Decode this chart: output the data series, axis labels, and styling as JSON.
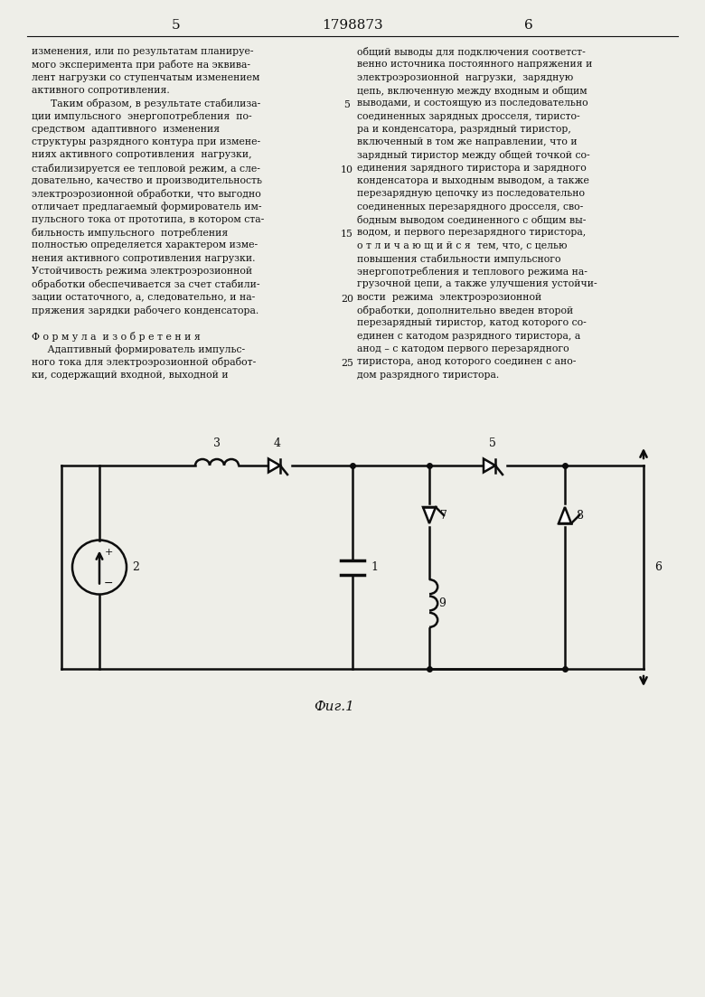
{
  "page_color": "#eeeee8",
  "text_color": "#111111",
  "page_num_left": "5",
  "page_num_center": "1798873",
  "page_num_right": "6",
  "left_col": [
    "изменения, или по результатам планируе-",
    "мого эксперимента при работе на эквива-",
    "лент нагрузки со ступенчатым изменением",
    "активного сопротивления.",
    "      Таким образом, в результате стабилиза-",
    "ции импульсного  энергопотребления  по-",
    "средством  адаптивного  изменения",
    "структуры разрядного контура при измене-",
    "ниях активного сопротивления  нагрузки,",
    "стабилизируется ее тепловой режим, а сле-",
    "довательно, качество и производительность",
    "электроэрозионной обработки, что выгодно",
    "отличает предлагаемый формирователь им-",
    "пульсного тока от прототипа, в котором ста-",
    "бильность импульсного  потребления",
    "полностью определяется характером изме-",
    "нения активного сопротивления нагрузки.",
    "Устойчивость режима электроэрозионной",
    "обработки обеспечивается за счет стабили-",
    "зации остаточного, а, следовательно, и на-",
    "пряжения зарядки рабочего конденсатора.",
    "",
    "Ф о р м у л а  и з о б р е т е н и я",
    "     Адаптивный формирователь импульс-",
    "ного тока для электроэрозионной обработ-",
    "ки, содержащий входной, выходной и"
  ],
  "right_col": [
    "общий выводы для подключения соответст-",
    "венно источника постоянного напряжения и",
    "электроэрозионной  нагрузки,  зарядную",
    "цепь, включенную между входным и общим",
    "выводами, и состоящую из последовательно",
    "соединенных зарядных дросселя, тиристо-",
    "ра и конденсатора, разрядный тиристор,",
    "включенный в том же направлении, что и",
    "зарядный тиристор между общей точкой со-",
    "единения зарядного тиристора и зарядного",
    "конденсатора и выходным выводом, а также",
    "перезарядную цепочку из последовательно",
    "соединенных перезарядного дросселя, сво-",
    "бодным выводом соединенного с общим вы-",
    "водом, и первого перезарядного тиристора,",
    "о т л и ч а ю щ и й с я  тем, что, с целью",
    "повышения стабильности импульсного",
    "энергопотребления и теплового режима на-",
    "грузочной цепи, а также улучшения устойчи-",
    "вости  режима  электроэрозионной",
    "обработки, дополнительно введен второй",
    "перезарядный тиристор, катод которого со-",
    "единен с катодом разрядного тиристора, а",
    "анод – с катодом первого перезарядного",
    "тиристора, анод которого соединен с ано-",
    "дом разрядного тиристора."
  ],
  "line_numbers": [
    5,
    10,
    15,
    20,
    25
  ],
  "fig_caption": "Фиг.1",
  "lw": 1.8
}
